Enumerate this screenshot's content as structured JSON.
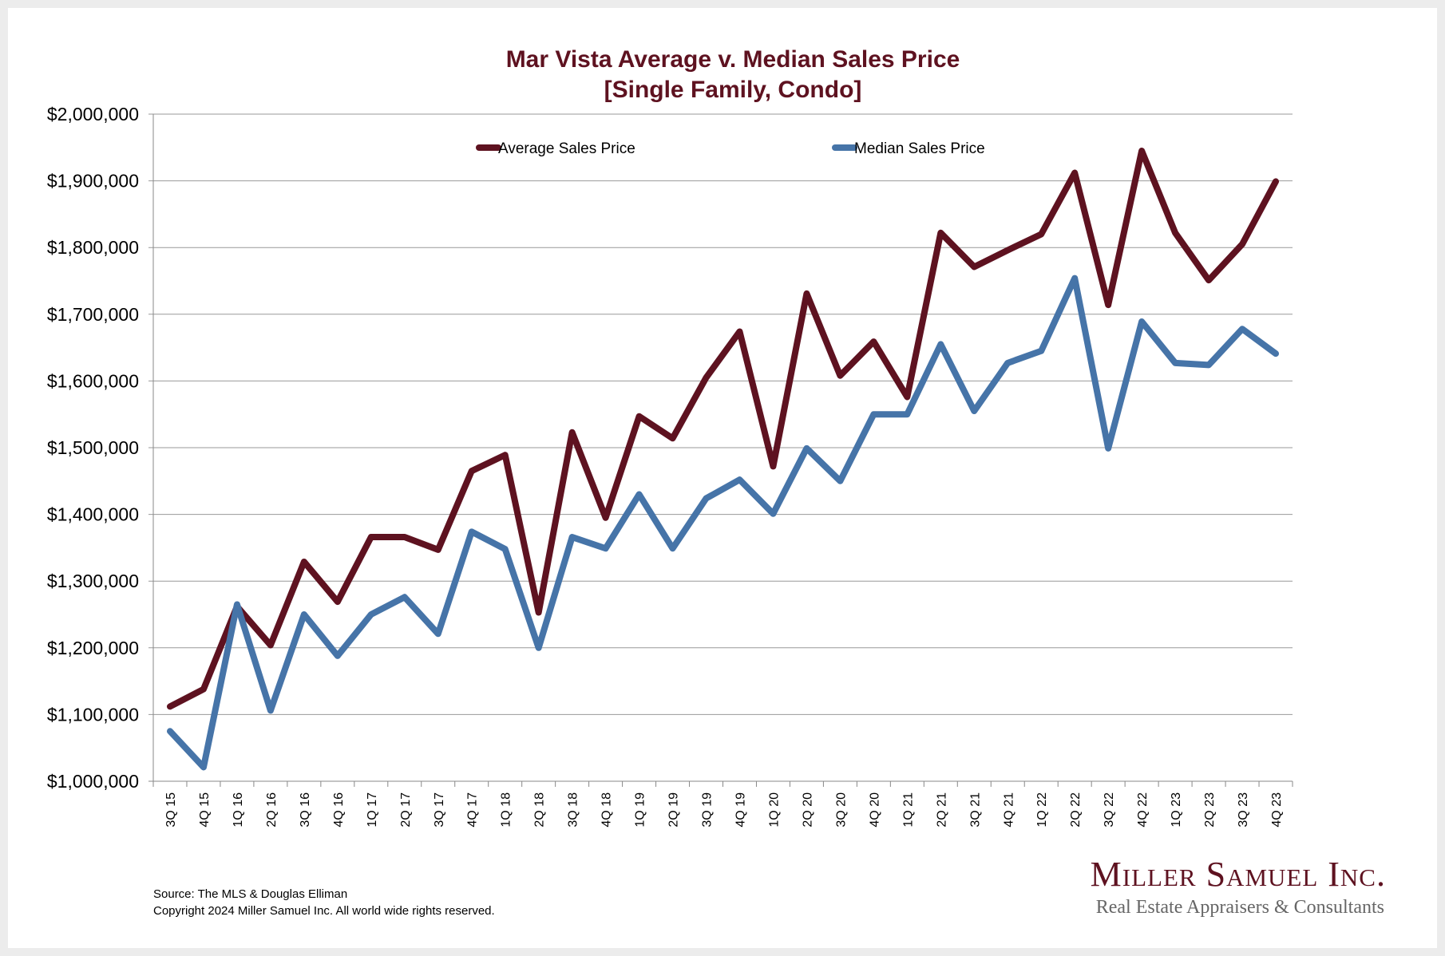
{
  "chart_data": {
    "type": "line",
    "title": "Mar Vista Average v. Median Sales Price",
    "subtitle": "[Single Family, Condo]",
    "xlabel": "",
    "ylabel": "",
    "ylim": [
      1000000,
      2000000
    ],
    "ytick_step": 100000,
    "yticks": [
      "$1,000,000",
      "$1,100,000",
      "$1,200,000",
      "$1,300,000",
      "$1,400,000",
      "$1,500,000",
      "$1,600,000",
      "$1,700,000",
      "$1,800,000",
      "$1,900,000",
      "$2,000,000"
    ],
    "grid": true,
    "legend_position": "top",
    "categories": [
      "3Q 15",
      "4Q 15",
      "1Q 16",
      "2Q 16",
      "3Q 16",
      "4Q 16",
      "1Q 17",
      "2Q 17",
      "3Q 17",
      "4Q 17",
      "1Q 18",
      "2Q 18",
      "3Q 18",
      "4Q 18",
      "1Q 19",
      "2Q 19",
      "3Q 19",
      "4Q 19",
      "1Q 20",
      "2Q 20",
      "3Q 20",
      "4Q 20",
      "1Q 21",
      "2Q 21",
      "3Q 21",
      "4Q 21",
      "1Q 22",
      "2Q 22",
      "3Q 22",
      "4Q 22",
      "1Q 23",
      "2Q 23",
      "3Q 23",
      "4Q 23"
    ],
    "series": [
      {
        "name": "Average Sales Price",
        "color": "#5e1220",
        "values": [
          1112000,
          1138000,
          1262000,
          1204000,
          1329000,
          1269000,
          1366000,
          1366000,
          1347000,
          1465000,
          1489000,
          1253000,
          1523000,
          1395000,
          1547000,
          1514000,
          1605000,
          1674000,
          1472000,
          1731000,
          1608000,
          1659000,
          1576000,
          1822000,
          1771000,
          1796000,
          1820000,
          1912000,
          1714000,
          1945000,
          1822000,
          1751000,
          1805000,
          1899000
        ]
      },
      {
        "name": "Median Sales Price",
        "color": "#4674a8",
        "values": [
          1075000,
          1021000,
          1265000,
          1106000,
          1250000,
          1188000,
          1250000,
          1276000,
          1221000,
          1374000,
          1348000,
          1200000,
          1366000,
          1349000,
          1430000,
          1349000,
          1424000,
          1452000,
          1401000,
          1499000,
          1450000,
          1550000,
          1550000,
          1655000,
          1555000,
          1627000,
          1645000,
          1754000,
          1499000,
          1689000,
          1627000,
          1624000,
          1678000,
          1641000
        ]
      }
    ]
  },
  "footer": {
    "source": "Source: The MLS & Douglas Elliman",
    "copyright": "Copyright 2024 Miller Samuel Inc.  All world wide rights reserved."
  },
  "logo": {
    "name": "Miller Samuel Inc.",
    "tagline": "Real Estate Appraisers & Consultants"
  }
}
